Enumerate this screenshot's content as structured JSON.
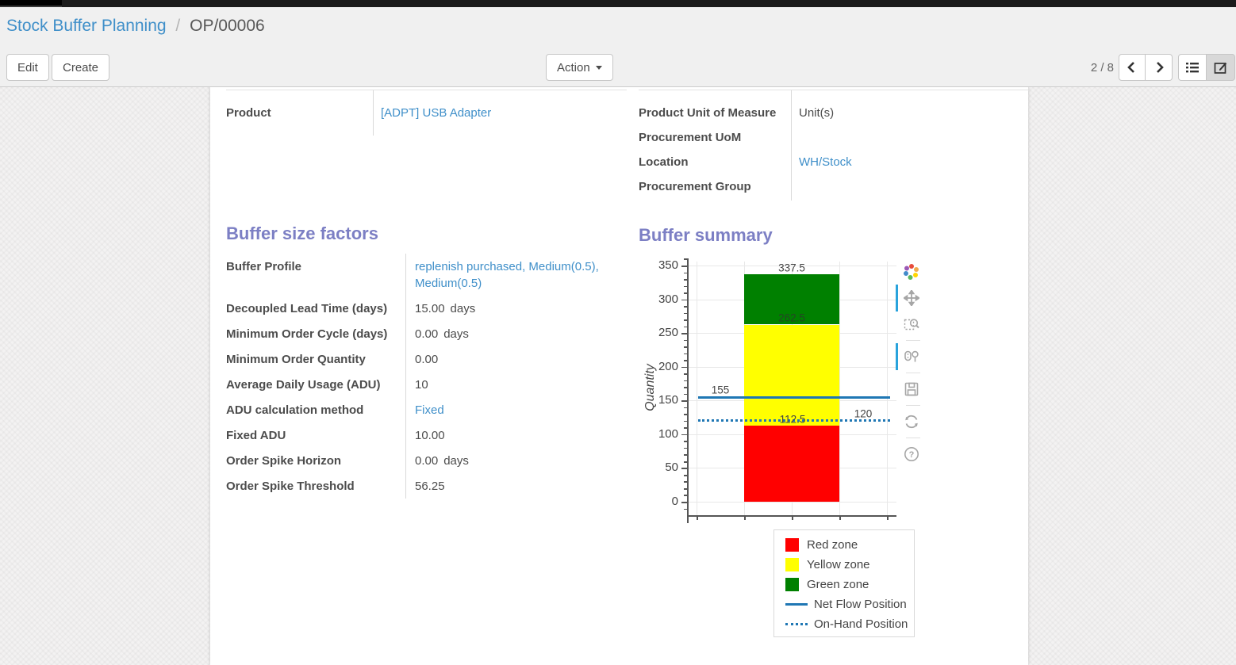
{
  "breadcrumb": {
    "parent": "Stock Buffer Planning",
    "separator": "/",
    "current": "OP/00006"
  },
  "control_panel": {
    "edit_label": "Edit",
    "create_label": "Create",
    "action_label": "Action",
    "pager_text": "2 / 8",
    "view_switcher": [
      "list-view",
      "form-view"
    ],
    "active_view": "form-view"
  },
  "form": {
    "left_group": {
      "rows": [
        {
          "label": "Product",
          "value": "[ADPT] USB Adapter",
          "link": true
        }
      ]
    },
    "right_group": {
      "rows": [
        {
          "label": "Product Unit of Measure",
          "value": "Unit(s)",
          "link": false
        },
        {
          "label": "Procurement UoM",
          "value": "",
          "link": false
        },
        {
          "label": "Location",
          "value": "WH/Stock",
          "link": true
        },
        {
          "label": "Procurement Group",
          "value": "",
          "link": false
        }
      ]
    },
    "buffer_factors": {
      "title": "Buffer size factors",
      "rows": [
        {
          "label": "Buffer Profile",
          "value": "replenish purchased, Medium(0.5), Medium(0.5)",
          "link": true
        },
        {
          "label": "Decoupled Lead Time (days)",
          "value": "15.00",
          "unit": "days",
          "link": false
        },
        {
          "label": "Minimum Order Cycle (days)",
          "value": "0.00",
          "unit": "days",
          "link": false
        },
        {
          "label": "Minimum Order Quantity",
          "value": "0.00",
          "link": false
        },
        {
          "label": "Average Daily Usage (ADU)",
          "value": "10",
          "link": false
        },
        {
          "label": "ADU calculation method",
          "value": "Fixed",
          "link": true
        },
        {
          "label": "Fixed ADU",
          "value": "10.00",
          "link": false
        },
        {
          "label": "Order Spike Horizon",
          "value": "0.00",
          "unit": "days",
          "link": false
        },
        {
          "label": "Order Spike Threshold",
          "value": "56.25",
          "link": false
        }
      ]
    },
    "buffer_summary": {
      "title": "Buffer summary"
    }
  },
  "chart_data": {
    "type": "bar",
    "title": "Buffer summary",
    "xlabel": "",
    "ylabel": "Quantity",
    "ylim": [
      0,
      350
    ],
    "ytick_step": 50,
    "y_minor_step": 10,
    "grid": true,
    "legend_position": "bottom-right",
    "zones": [
      {
        "name": "Red zone",
        "from": 0,
        "to": 112.5,
        "color": "#ff0000"
      },
      {
        "name": "Yellow zone",
        "from": 112.5,
        "to": 262.5,
        "color": "#ffff00"
      },
      {
        "name": "Green zone",
        "from": 262.5,
        "to": 337.5,
        "color": "#008000"
      }
    ],
    "lines": [
      {
        "name": "Net Flow Position",
        "value": 155,
        "style": "solid",
        "color": "#1f77b4"
      },
      {
        "name": "On-Hand Position",
        "value": 120,
        "style": "dotted",
        "color": "#1f77b4"
      }
    ],
    "annotations": [
      {
        "text": "337.5"
      },
      {
        "text": "262.5"
      },
      {
        "text": "155"
      },
      {
        "text": "112.5"
      },
      {
        "text": "120"
      }
    ]
  },
  "modebar": {
    "icons": [
      "plotly-logo",
      "pan",
      "box-zoom",
      "hover-compare",
      "save",
      "reset-axes",
      "help"
    ]
  },
  "colors": {
    "link": "#3f8fc9",
    "section_title": "#7c7fc4",
    "accent_blue": "#29a3dc",
    "red_zone": "#ff0000",
    "yellow_zone": "#ffff00",
    "green_zone": "#008000",
    "line_blue": "#1f77b4"
  }
}
